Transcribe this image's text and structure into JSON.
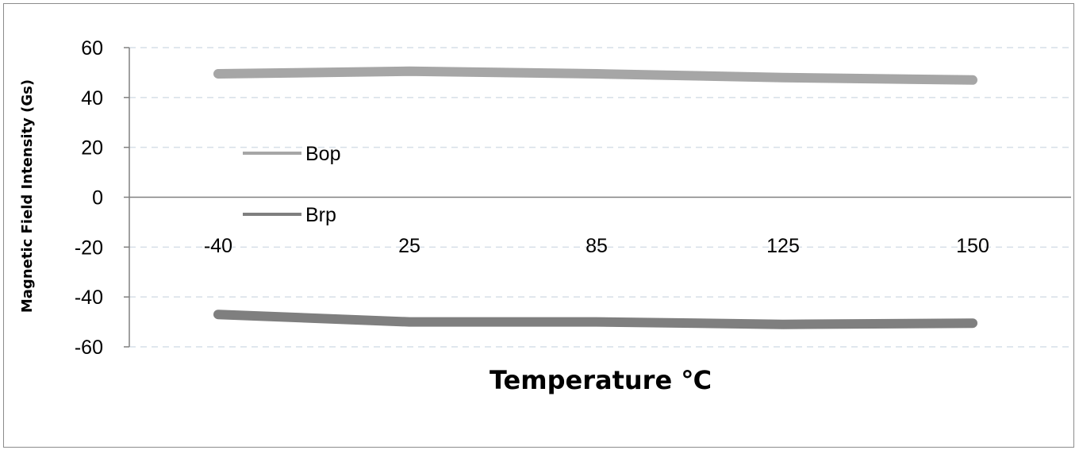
{
  "chart_data": {
    "type": "line",
    "categories": [
      "-40",
      "25",
      "85",
      "125",
      "150"
    ],
    "series": [
      {
        "name": "Bop",
        "values": [
          49.5,
          50.5,
          49.5,
          48,
          47
        ],
        "color": "#a6a6a6"
      },
      {
        "name": "Brp",
        "values": [
          -47,
          -50,
          -50,
          -51,
          -50.5
        ],
        "color": "#7f7f7f"
      }
    ],
    "title": "",
    "xlabel": "Temperature ℃",
    "ylabel": "Magnetic Field Intensity (Gs)",
    "ylim": [
      -60,
      60
    ],
    "yticks": [
      60,
      40,
      20,
      0,
      -20,
      -40,
      -60
    ],
    "grid": true,
    "legend_position": "left"
  }
}
